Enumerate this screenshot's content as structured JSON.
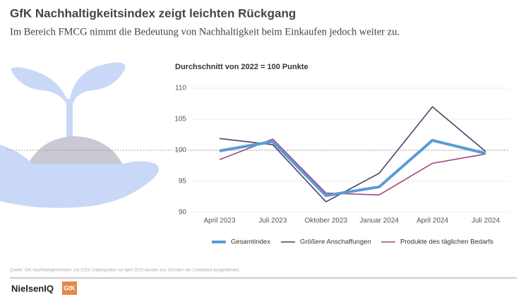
{
  "chart_data": {
    "type": "line",
    "title": "GfK Nachhaltigkeitsindex zeigt leichten Rückgang",
    "subtitle": "Im Bereich FMCG nimmt die Bedeutung von Nachhaltigkeit beim Einkaufen jedoch weiter zu.",
    "chart_title": "Durchschnitt von 2022 = 100 Punkte",
    "categories": [
      "April 2023",
      "Juli 2023",
      "Oktober 2023",
      "Januar 2024",
      "April 2024",
      "Juli 2024"
    ],
    "series": [
      {
        "name": "Gesamtindex",
        "color": "#5b9bd5",
        "values": [
          99.9,
          101.4,
          92.7,
          94.1,
          101.6,
          99.5
        ]
      },
      {
        "name": "Größere Anschaffungen",
        "color": "#4b4468",
        "values": [
          101.9,
          100.9,
          91.7,
          96.3,
          107.0,
          99.8
        ]
      },
      {
        "name": "Produkte des täglichen Bedarfs",
        "color": "#a2467f",
        "values": [
          98.5,
          101.8,
          93.1,
          92.8,
          97.9,
          99.4
        ]
      }
    ],
    "ylim": [
      90,
      110
    ],
    "yticks": [
      90,
      95,
      100,
      105,
      110
    ],
    "grid": true,
    "reference_line": 100,
    "legend": "bottom",
    "source": "Quelle: GfK Nachhaltigkeitsindex Juli 2024; Datenpunkte vor April 2023 wurden aus Gründen der Lesbarkeit ausgeblendet.",
    "brands": [
      "NielsenIQ",
      "GfK"
    ]
  }
}
